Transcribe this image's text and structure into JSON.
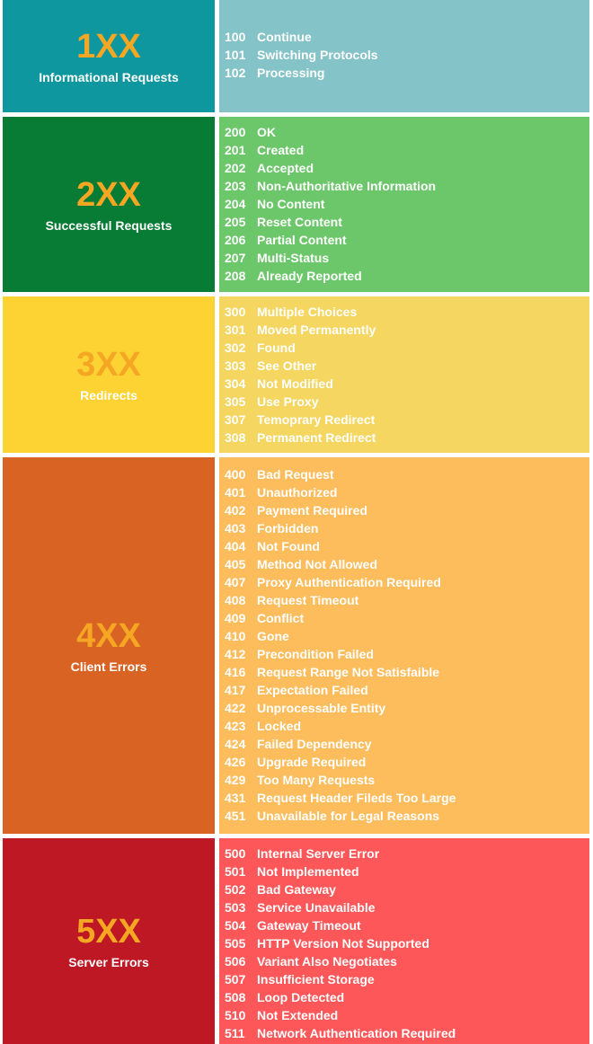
{
  "sections": [
    {
      "key": "1xx",
      "code": "1XX",
      "label": "Informational Requests",
      "colors": {
        "left": "#0f97a0",
        "right": "#84c3c8",
        "code": "#f5a623"
      },
      "items": [
        {
          "num": "100",
          "text": "Continue"
        },
        {
          "num": "101",
          "text": "Switching Protocols"
        },
        {
          "num": "102",
          "text": "Processing"
        }
      ]
    },
    {
      "key": "2xx",
      "code": "2XX",
      "label": "Successful Requests",
      "colors": {
        "left": "#087c35",
        "right": "#6cc76a",
        "code": "#f5a623"
      },
      "items": [
        {
          "num": "200",
          "text": "OK"
        },
        {
          "num": "201",
          "text": "Created"
        },
        {
          "num": "202",
          "text": "Accepted"
        },
        {
          "num": "203",
          "text": "Non-Authoritative Information"
        },
        {
          "num": "204",
          "text": "No Content"
        },
        {
          "num": "205",
          "text": "Reset Content"
        },
        {
          "num": "206",
          "text": "Partial Content"
        },
        {
          "num": "207",
          "text": "Multi-Status"
        },
        {
          "num": "208",
          "text": "Already Reported"
        }
      ]
    },
    {
      "key": "3xx",
      "code": "3XX",
      "label": "Redirects",
      "colors": {
        "left": "#fdd334",
        "right": "#f4d660",
        "code": "#f5a623"
      },
      "items": [
        {
          "num": "300",
          "text": "Multiple Choices"
        },
        {
          "num": "301",
          "text": "Moved Permanently"
        },
        {
          "num": "302",
          "text": "Found"
        },
        {
          "num": "303",
          "text": "See Other"
        },
        {
          "num": "304",
          "text": "Not Modified"
        },
        {
          "num": "305",
          "text": "Use Proxy"
        },
        {
          "num": "307",
          "text": "Temoprary Redirect"
        },
        {
          "num": "308",
          "text": "Permanent Redirect"
        }
      ]
    },
    {
      "key": "4xx",
      "code": "4XX",
      "label": "Client Errors",
      "colors": {
        "left": "#d96322",
        "right": "#fdbd5c",
        "code": "#f5a623"
      },
      "items": [
        {
          "num": "400",
          "text": "Bad Request"
        },
        {
          "num": "401",
          "text": "Unauthorized"
        },
        {
          "num": "402",
          "text": "Payment Required"
        },
        {
          "num": "403",
          "text": "Forbidden"
        },
        {
          "num": "404",
          "text": "Not Found"
        },
        {
          "num": "405",
          "text": "Method Not Allowed"
        },
        {
          "num": "407",
          "text": "Proxy Authentication Required"
        },
        {
          "num": "408",
          "text": "Request Timeout"
        },
        {
          "num": "409",
          "text": "Conflict"
        },
        {
          "num": "410",
          "text": "Gone"
        },
        {
          "num": "412",
          "text": "Precondition Failed"
        },
        {
          "num": "416",
          "text": "Request Range Not Satisfaible"
        },
        {
          "num": "417",
          "text": "Expectation Failed"
        },
        {
          "num": "422",
          "text": "Unprocessable Entity"
        },
        {
          "num": "423",
          "text": "Locked"
        },
        {
          "num": "424",
          "text": "Failed Dependency"
        },
        {
          "num": "426",
          "text": "Upgrade Required"
        },
        {
          "num": "429",
          "text": "Too Many Requests"
        },
        {
          "num": "431",
          "text": "Request Header Fileds Too Large"
        },
        {
          "num": "451",
          "text": "Unavailable for Legal Reasons"
        }
      ]
    },
    {
      "key": "5xx",
      "code": "5XX",
      "label": "Server Errors",
      "colors": {
        "left": "#bd1823",
        "right": "#fd5759",
        "code": "#f5a623"
      },
      "items": [
        {
          "num": "500",
          "text": "Internal Server Error"
        },
        {
          "num": "501",
          "text": "Not Implemented"
        },
        {
          "num": "502",
          "text": "Bad Gateway"
        },
        {
          "num": "503",
          "text": "Service Unavailable"
        },
        {
          "num": "504",
          "text": "Gateway Timeout"
        },
        {
          "num": "505",
          "text": "HTTP Version Not Supported"
        },
        {
          "num": "506",
          "text": "Variant Also Negotiates"
        },
        {
          "num": "507",
          "text": "Insufficient Storage"
        },
        {
          "num": "508",
          "text": "Loop Detected"
        },
        {
          "num": "510",
          "text": "Not Extended"
        },
        {
          "num": "511",
          "text": "Network Authentication Required"
        }
      ]
    }
  ]
}
